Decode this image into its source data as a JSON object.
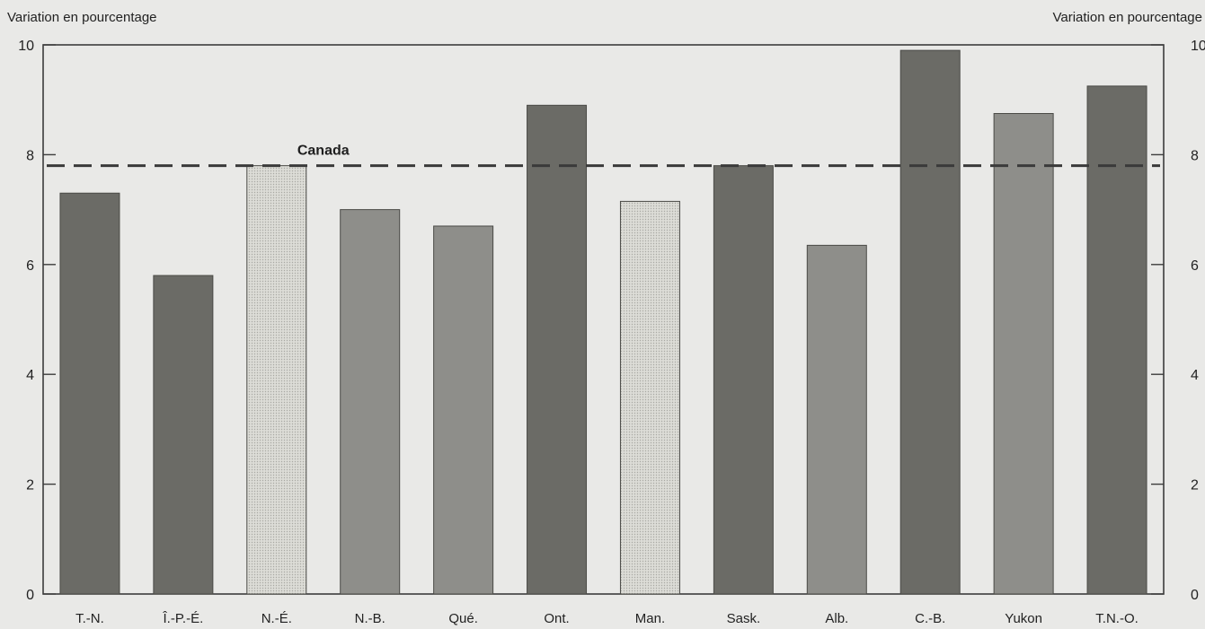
{
  "chart_data": {
    "type": "bar",
    "ylabel_left": "Variation en pourcentage",
    "ylabel_right": "Variation en pourcentage",
    "ylim": [
      0,
      10
    ],
    "yticks": [
      0,
      2,
      4,
      6,
      8,
      10
    ],
    "categories": [
      "T.-N.",
      "Î.-P.-É.",
      "N.-É.",
      "N.-B.",
      "Qué.",
      "Ont.",
      "Man.",
      "Sask.",
      "Alb.",
      "C.-B.",
      "Yukon",
      "T.N.-O."
    ],
    "values": [
      7.3,
      5.8,
      7.8,
      7.0,
      6.7,
      8.9,
      7.15,
      7.8,
      6.35,
      9.9,
      8.75,
      9.25
    ],
    "reference_line": {
      "label": "Canada",
      "value": 7.8
    },
    "grid": false,
    "legend": "none",
    "colors": {
      "dark": "#6b6b66",
      "medium": "#8e8e8a",
      "light": "#d8d8d3",
      "reference": "#3a3a3a",
      "axis": "#3c3c3c"
    },
    "bar_shades": [
      "dark",
      "dark",
      "light",
      "medium",
      "medium",
      "dark",
      "light",
      "dark",
      "medium",
      "dark",
      "medium",
      "dark"
    ]
  }
}
